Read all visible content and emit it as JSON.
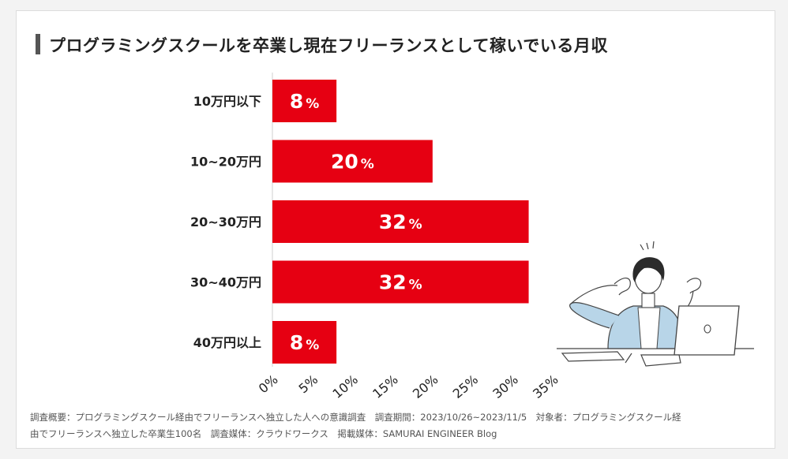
{
  "title": "プログラミングスクールを卒業し現在フリーランスとして稼いでいる月収",
  "chart_data": {
    "type": "bar",
    "orientation": "horizontal",
    "title": "プログラミングスクールを卒業し現在フリーランスとして稼いでいる月収",
    "categories": [
      "10万円以下",
      "10~20万円",
      "20~30万円",
      "30~40万円",
      "40万円以上"
    ],
    "values": [
      8,
      20,
      32,
      32,
      8
    ],
    "value_suffix": "%",
    "xlim": [
      0,
      35
    ],
    "xticks": [
      0,
      5,
      10,
      15,
      20,
      25,
      30,
      35
    ],
    "xtick_labels": [
      "0%",
      "5%",
      "10%",
      "15%",
      "20%",
      "25%",
      "30%",
      "35%"
    ],
    "xlabel": "",
    "ylabel": "",
    "grid": false,
    "bar_color": "#e60012"
  },
  "footnote": {
    "line1": "調査概要：プログラミングスクール経由でフリーランスへ独立した人への意識調査　調査期間：2023/10/26~2023/11/5　対象者：プログラミングスクール経",
    "line2": "由でフリーランスへ独立した卒業生100名　調査媒体：クラウドワークス　掲載媒体：SAMURAI ENGINEER Blog"
  },
  "colors": {
    "bar": "#e60012",
    "text": "#222222",
    "note": "#555555"
  }
}
